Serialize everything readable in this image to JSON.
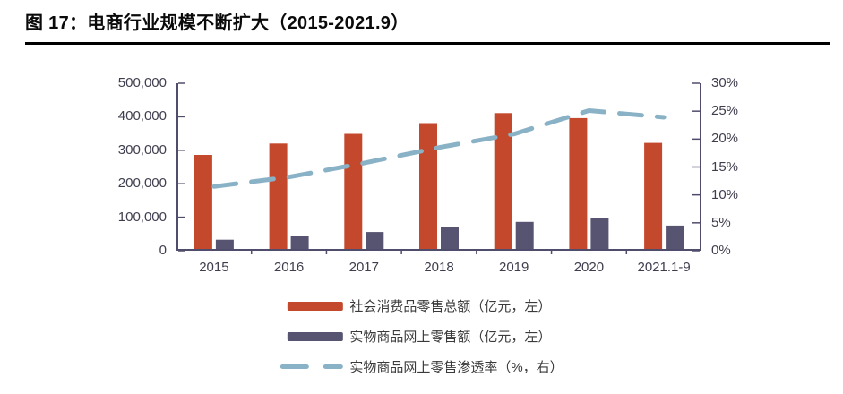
{
  "figure": {
    "title": "图 17：电商行业规模不断扩大（2015-2021.9）"
  },
  "chart_data": {
    "type": "combo",
    "title": "电商行业规模不断扩大（2015-2021.9）",
    "categories": [
      "2015",
      "2016",
      "2017",
      "2018",
      "2019",
      "2020",
      "2021.1-9"
    ],
    "series": [
      {
        "name": "社会消费品零售总额（亿元，左）",
        "type": "bar",
        "axis": "left",
        "color": "#C4492C",
        "values": [
          286000,
          320000,
          349000,
          381000,
          411000,
          396000,
          322000
        ]
      },
      {
        "name": "实物商品网上零售额（亿元，左）",
        "type": "bar",
        "axis": "left",
        "color": "#575471",
        "values": [
          33000,
          44000,
          56000,
          71000,
          86000,
          98000,
          75000
        ]
      },
      {
        "name": "实物商品网上零售渗透率（%，右）",
        "type": "line",
        "axis": "right",
        "dashed": true,
        "color": "#8AB2C6",
        "values": [
          11.5,
          13.2,
          15.7,
          18.5,
          20.9,
          25.1,
          23.9
        ]
      }
    ],
    "left_axis": {
      "min": 0,
      "max": 500000,
      "tick_step": 100000,
      "ticks": [
        "0",
        "100,000",
        "200,000",
        "300,000",
        "400,000",
        "500,000"
      ]
    },
    "right_axis": {
      "min": 0,
      "max": 30,
      "tick_step": 5,
      "ticks": [
        "0%",
        "5%",
        "10%",
        "15%",
        "20%",
        "25%",
        "30%"
      ]
    },
    "grid": false,
    "legend_position": "bottom",
    "axis_color": "#504D6C"
  }
}
